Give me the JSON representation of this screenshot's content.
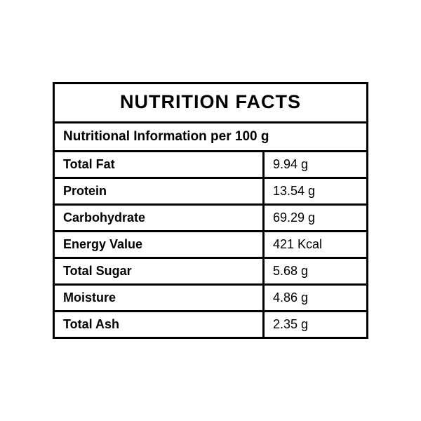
{
  "panel": {
    "title": "NUTRITION FACTS",
    "subtitle": "Nutritional Information per 100 g",
    "title_fontsize": 27,
    "subtitle_fontsize": 19,
    "cell_fontsize": 18,
    "border_color": "#000000",
    "border_width": 3,
    "background_color": "#ffffff",
    "text_color": "#000000",
    "name_column_width_pct": 67,
    "value_column_width_pct": 33,
    "rows": [
      {
        "name": "Total Fat",
        "value": "9.94 g"
      },
      {
        "name": "Protein",
        "value": "13.54 g"
      },
      {
        "name": "Carbohydrate",
        "value": "69.29 g"
      },
      {
        "name": "Energy Value",
        "value": "421 Kcal"
      },
      {
        "name": "Total Sugar",
        "value": "5.68 g"
      },
      {
        "name": "Moisture",
        "value": "4.86 g"
      },
      {
        "name": "Total Ash",
        "value": "2.35 g"
      }
    ]
  }
}
